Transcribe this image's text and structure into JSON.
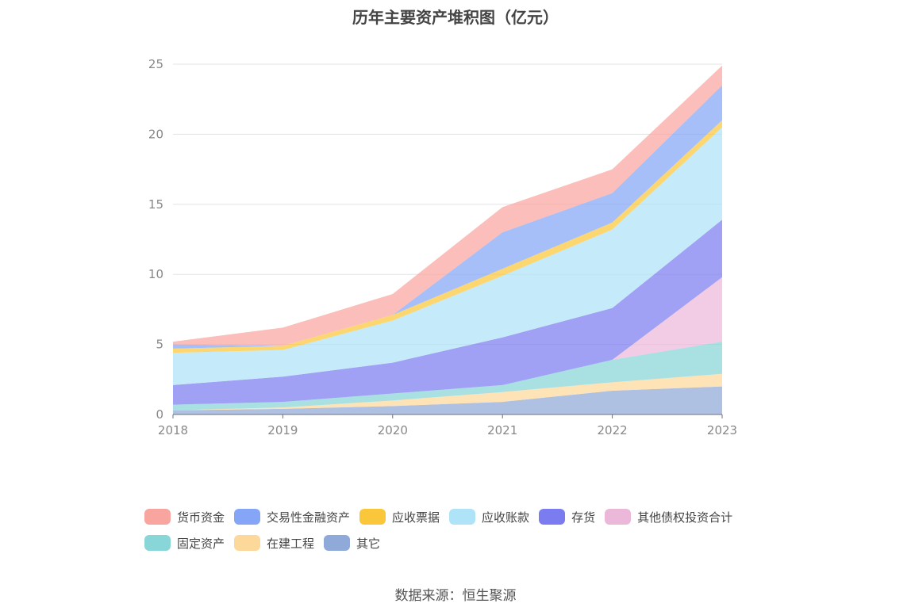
{
  "chart_data": {
    "type": "area",
    "stacked": true,
    "title": "历年主要资产堆积图（亿元）",
    "categories": [
      "2018",
      "2019",
      "2020",
      "2021",
      "2022",
      "2023"
    ],
    "ylim": [
      0,
      25
    ],
    "yticks": [
      0,
      5,
      10,
      15,
      20,
      25
    ],
    "xlabel": "",
    "ylabel": "",
    "legend_position": "bottom",
    "series": [
      {
        "name": "其它",
        "color": "#8fa9d8",
        "values": [
          0.3,
          0.4,
          0.6,
          0.9,
          1.7,
          2.0
        ]
      },
      {
        "name": "在建工程",
        "color": "#fdd89b",
        "values": [
          0.0,
          0.1,
          0.4,
          0.7,
          0.6,
          0.9
        ]
      },
      {
        "name": "固定资产",
        "color": "#88d6d8",
        "values": [
          0.4,
          0.4,
          0.5,
          0.5,
          1.6,
          2.3
        ]
      },
      {
        "name": "其他债权投资合计",
        "color": "#ebb8da",
        "values": [
          0.0,
          0.0,
          0.0,
          0.0,
          0.0,
          4.6
        ]
      },
      {
        "name": "存货",
        "color": "#7b7cf0",
        "values": [
          1.4,
          1.8,
          2.2,
          3.4,
          3.7,
          4.1
        ]
      },
      {
        "name": "应收账款",
        "color": "#aee3f8",
        "values": [
          2.3,
          1.9,
          3.0,
          4.4,
          5.6,
          6.6
        ]
      },
      {
        "name": "应收票据",
        "color": "#fbc73a",
        "values": [
          0.3,
          0.3,
          0.4,
          0.5,
          0.5,
          0.5
        ]
      },
      {
        "name": "交易性金融资产",
        "color": "#85a6f7",
        "values": [
          0.3,
          0.0,
          0.0,
          2.6,
          2.1,
          2.5
        ]
      },
      {
        "name": "货币资金",
        "color": "#f9a59f",
        "values": [
          0.2,
          1.3,
          1.5,
          1.8,
          1.7,
          1.4
        ]
      }
    ],
    "legend_order": [
      "货币资金",
      "交易性金融资产",
      "应收票据",
      "应收账款",
      "存货",
      "其他债权投资合计",
      "固定资产",
      "在建工程",
      "其它"
    ]
  },
  "source_text": "数据来源：恒生聚源"
}
